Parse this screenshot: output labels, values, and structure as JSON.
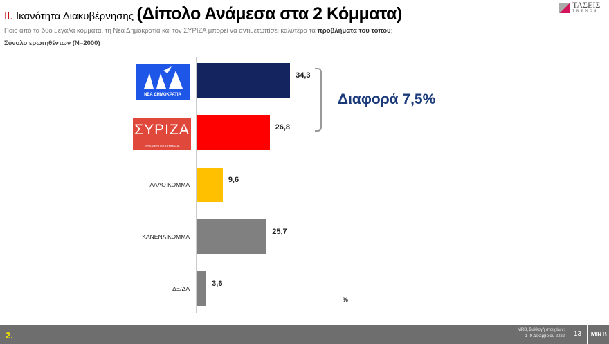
{
  "header": {
    "section_num": "II.",
    "section_title": "Ικανότητα Διακυβέρνησης",
    "main_title": "(Δίπολο Ανάμεσα στα 2 Κόμματα)",
    "question_pre": "Ποιο από τα δύο μεγάλα κόμματα, τη Νέα Δημοκρατία και τον ΣΥΡΙΖΑ μπορεί να αντιμετωπίσει καλύτερα  τα ",
    "question_bold": "προβλήματα του τόπου",
    "question_post": ";",
    "sample": "Σύνολο ερωτηθέντων (N=2000)",
    "logo_text": "ΤΑΣΕΙΣ",
    "logo_sub": "TRENDS"
  },
  "chart_data": {
    "type": "bar",
    "orientation": "horizontal",
    "unit": "%",
    "xlim": [
      0,
      40
    ],
    "categories": [
      "ΝΕΑ ΔΗΜΟΚΡΑΤΙΑ",
      "ΣΥΡΙΖΑ",
      "ΑΛΛΟ ΚΟΜΜΑ",
      "ΚΑΝΕΝΑ ΚΟΜΜΑ",
      "ΔΞ/ΔΑ"
    ],
    "values": [
      34.3,
      26.8,
      9.6,
      25.7,
      3.6
    ],
    "labels": [
      "34,3",
      "26,8",
      "9,6",
      "25,7",
      "3,6"
    ],
    "colors": [
      "#14245e",
      "#ff0000",
      "#ffc000",
      "#808080",
      "#808080"
    ],
    "annotation": "Διαφορά 7,5%",
    "nd_logo": {
      "text": "ΝΕΑ ΔΗΜΟΚΡΑΤΙΑ",
      "color": "#1e56e8"
    },
    "syriza_logo": {
      "text": "ΣΥΡΙΖΑ",
      "sub": "ΠΡΟΟΔΕΥΤΙΚΗ ΣΥΜΜΑΧΙΑ",
      "color": "#e0483c"
    }
  },
  "footer": {
    "page_label": "2.",
    "source_line1": "MRB, Συλλογή στοιχείων:",
    "source_line2": "1 -9 Δεκεμβρίου 2022",
    "page_number": "13",
    "logo": "MRB"
  }
}
